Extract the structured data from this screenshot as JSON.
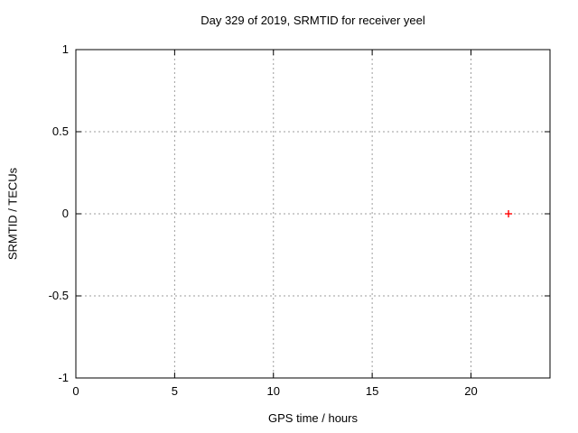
{
  "chart": {
    "title": "Day 329 of 2019, SRMTID for receiver yeel",
    "xlabel": "GPS time / hours",
    "ylabel": "SRMTID / TECUs"
  },
  "chart_data": {
    "type": "scatter",
    "title": "Day 329 of 2019, SRMTID for receiver yeel",
    "xlabel": "GPS time / hours",
    "ylabel": "SRMTID / TECUs",
    "xlim": [
      0,
      24
    ],
    "ylim": [
      -1,
      1
    ],
    "xticks": [
      0,
      5,
      10,
      15,
      20
    ],
    "yticks": [
      -1,
      -0.5,
      0,
      0.5,
      1
    ],
    "grid": true,
    "legend_position": "none",
    "marker": "plus",
    "series": [
      {
        "name": "SRMTID",
        "color": "#ff0000",
        "points": [
          {
            "x": 21.9,
            "y": 0
          }
        ]
      }
    ]
  },
  "colors": {
    "background": "#ffffff",
    "border": "#000000",
    "grid": "#9e9e9e",
    "text": "#000000",
    "marker": "#ff0000"
  }
}
